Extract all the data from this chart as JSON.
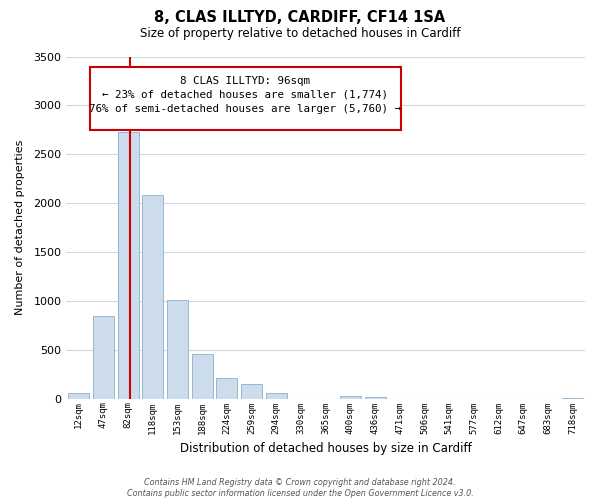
{
  "title": "8, CLAS ILLTYD, CARDIFF, CF14 1SA",
  "subtitle": "Size of property relative to detached houses in Cardiff",
  "xlabel": "Distribution of detached houses by size in Cardiff",
  "ylabel": "Number of detached properties",
  "bar_labels": [
    "12sqm",
    "47sqm",
    "82sqm",
    "118sqm",
    "153sqm",
    "188sqm",
    "224sqm",
    "259sqm",
    "294sqm",
    "330sqm",
    "365sqm",
    "400sqm",
    "436sqm",
    "471sqm",
    "506sqm",
    "541sqm",
    "577sqm",
    "612sqm",
    "647sqm",
    "683sqm",
    "718sqm"
  ],
  "bar_values": [
    55,
    850,
    2730,
    2080,
    1010,
    455,
    210,
    145,
    55,
    0,
    0,
    30,
    20,
    0,
    0,
    0,
    0,
    0,
    0,
    0,
    5
  ],
  "bar_color": "#ccdcec",
  "bar_edge_color": "#8ab0cc",
  "vline_x_index": 2,
  "vline_color": "#cc0000",
  "ylim": [
    0,
    3500
  ],
  "yticks": [
    0,
    500,
    1000,
    1500,
    2000,
    2500,
    3000,
    3500
  ],
  "annotation_line1": "8 CLAS ILLTYD: 96sqm",
  "annotation_line2": "← 23% of detached houses are smaller (1,774)",
  "annotation_line3": "76% of semi-detached houses are larger (5,760) →",
  "footer_text": "Contains HM Land Registry data © Crown copyright and database right 2024.\nContains public sector information licensed under the Open Government Licence v3.0.",
  "background_color": "#ffffff",
  "grid_color": "#c8d8e8"
}
